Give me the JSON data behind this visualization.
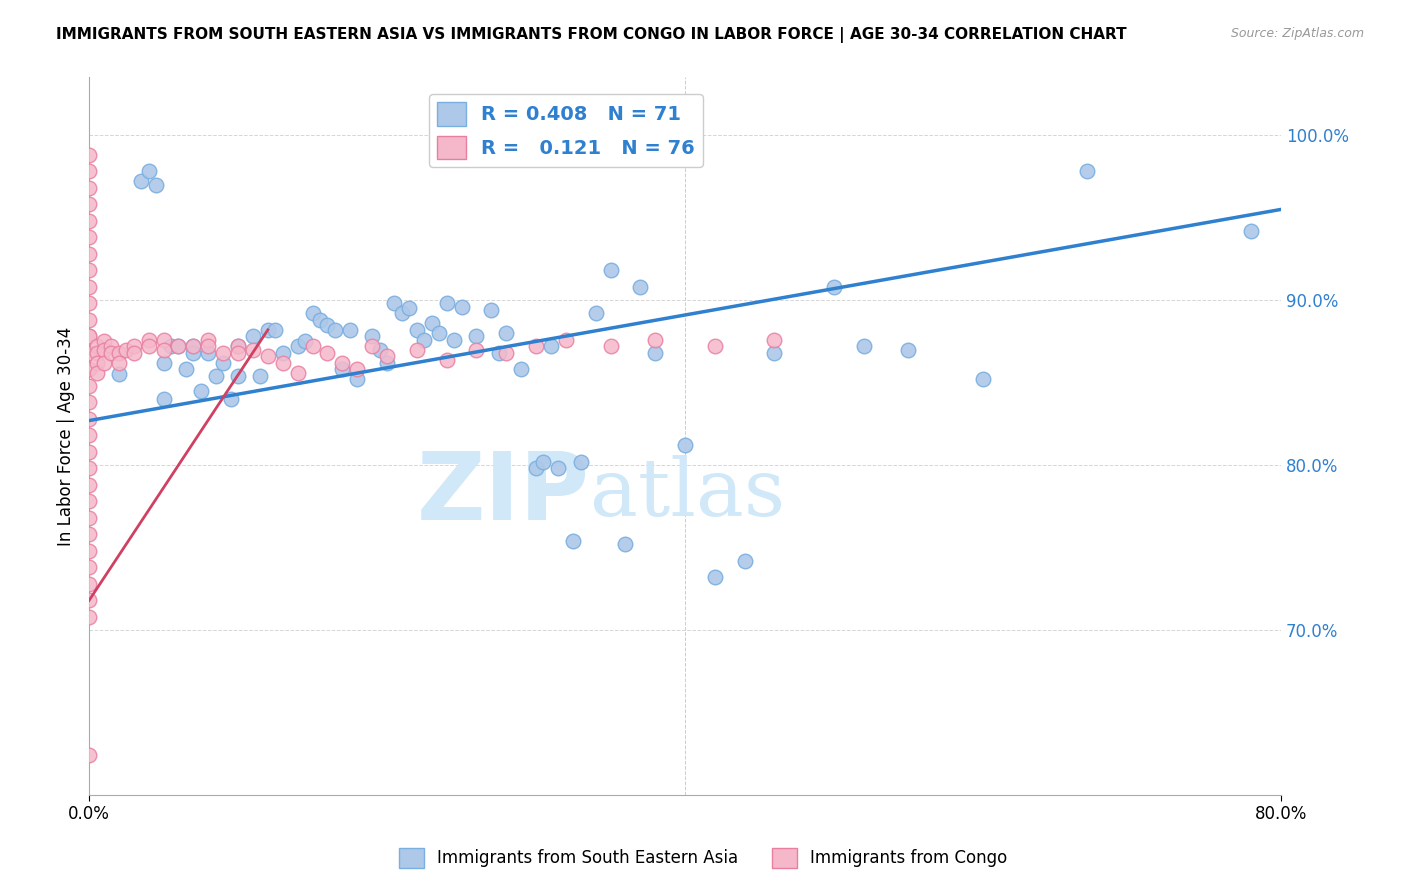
{
  "title": "IMMIGRANTS FROM SOUTH EASTERN ASIA VS IMMIGRANTS FROM CONGO IN LABOR FORCE | AGE 30-34 CORRELATION CHART",
  "source": "Source: ZipAtlas.com",
  "ylabel": "In Labor Force | Age 30-34",
  "xlim": [
    0.0,
    0.8
  ],
  "ylim": [
    0.6,
    1.035
  ],
  "xticks": [
    0.0,
    0.8
  ],
  "yticks": [
    0.7,
    0.8,
    0.9,
    1.0
  ],
  "ytick_labels": [
    "70.0%",
    "80.0%",
    "90.0%",
    "100.0%"
  ],
  "xtick_labels": [
    "0.0%",
    "80.0%"
  ],
  "blue_R": 0.408,
  "blue_N": 71,
  "pink_R": 0.121,
  "pink_N": 76,
  "blue_color": "#adc8e8",
  "blue_edge": "#7aafe0",
  "pink_color": "#f5b8cb",
  "pink_edge": "#e87fa0",
  "blue_line_color": "#3080d0",
  "pink_line_color": "#d04060",
  "watermark_zip": "ZIP",
  "watermark_atlas": "atlas",
  "watermark_color": "#d0e8f8",
  "legend_label_blue": "Immigrants from South Eastern Asia",
  "legend_label_pink": "Immigrants from Congo",
  "blue_x": [
    0.02,
    0.035,
    0.04,
    0.045,
    0.05,
    0.05,
    0.055,
    0.06,
    0.065,
    0.07,
    0.07,
    0.075,
    0.08,
    0.085,
    0.09,
    0.095,
    0.1,
    0.1,
    0.11,
    0.115,
    0.12,
    0.125,
    0.13,
    0.14,
    0.145,
    0.15,
    0.155,
    0.16,
    0.165,
    0.17,
    0.175,
    0.18,
    0.19,
    0.195,
    0.2,
    0.205,
    0.21,
    0.215,
    0.22,
    0.225,
    0.23,
    0.235,
    0.24,
    0.245,
    0.25,
    0.26,
    0.27,
    0.275,
    0.28,
    0.29,
    0.3,
    0.305,
    0.31,
    0.315,
    0.325,
    0.33,
    0.34,
    0.35,
    0.36,
    0.37,
    0.38,
    0.4,
    0.42,
    0.44,
    0.46,
    0.5,
    0.52,
    0.55,
    0.6,
    0.67,
    0.78
  ],
  "blue_y": [
    0.855,
    0.972,
    0.978,
    0.97,
    0.862,
    0.84,
    0.872,
    0.872,
    0.858,
    0.872,
    0.868,
    0.845,
    0.868,
    0.854,
    0.862,
    0.84,
    0.854,
    0.872,
    0.878,
    0.854,
    0.882,
    0.882,
    0.868,
    0.872,
    0.875,
    0.892,
    0.888,
    0.885,
    0.882,
    0.858,
    0.882,
    0.852,
    0.878,
    0.87,
    0.862,
    0.898,
    0.892,
    0.895,
    0.882,
    0.876,
    0.886,
    0.88,
    0.898,
    0.876,
    0.896,
    0.878,
    0.894,
    0.868,
    0.88,
    0.858,
    0.798,
    0.802,
    0.872,
    0.798,
    0.754,
    0.802,
    0.892,
    0.918,
    0.752,
    0.908,
    0.868,
    0.812,
    0.732,
    0.742,
    0.868,
    0.908,
    0.872,
    0.87,
    0.852,
    0.978,
    0.942
  ],
  "pink_x": [
    0.0,
    0.0,
    0.0,
    0.0,
    0.0,
    0.0,
    0.0,
    0.0,
    0.0,
    0.0,
    0.0,
    0.0,
    0.0,
    0.0,
    0.0,
    0.0,
    0.0,
    0.0,
    0.0,
    0.0,
    0.0,
    0.0,
    0.0,
    0.0,
    0.0,
    0.0,
    0.0,
    0.0,
    0.0,
    0.0,
    0.0,
    0.005,
    0.005,
    0.005,
    0.005,
    0.01,
    0.01,
    0.01,
    0.015,
    0.015,
    0.02,
    0.02,
    0.025,
    0.03,
    0.03,
    0.04,
    0.04,
    0.05,
    0.05,
    0.06,
    0.07,
    0.08,
    0.08,
    0.09,
    0.1,
    0.1,
    0.11,
    0.12,
    0.13,
    0.14,
    0.15,
    0.16,
    0.17,
    0.18,
    0.19,
    0.2,
    0.22,
    0.24,
    0.26,
    0.28,
    0.3,
    0.32,
    0.35,
    0.38,
    0.42,
    0.46
  ],
  "pink_y": [
    0.988,
    0.978,
    0.968,
    0.958,
    0.948,
    0.938,
    0.928,
    0.918,
    0.908,
    0.898,
    0.888,
    0.878,
    0.868,
    0.858,
    0.848,
    0.838,
    0.828,
    0.818,
    0.808,
    0.798,
    0.788,
    0.778,
    0.768,
    0.758,
    0.748,
    0.738,
    0.728,
    0.718,
    0.708,
    0.624,
    0.878,
    0.872,
    0.868,
    0.862,
    0.856,
    0.875,
    0.87,
    0.862,
    0.872,
    0.868,
    0.868,
    0.862,
    0.87,
    0.872,
    0.868,
    0.876,
    0.872,
    0.876,
    0.87,
    0.872,
    0.872,
    0.876,
    0.872,
    0.868,
    0.872,
    0.868,
    0.87,
    0.866,
    0.862,
    0.856,
    0.872,
    0.868,
    0.862,
    0.858,
    0.872,
    0.866,
    0.87,
    0.864,
    0.87,
    0.868,
    0.872,
    0.876,
    0.872,
    0.876,
    0.872,
    0.876
  ],
  "blue_trend_x": [
    0.0,
    0.8
  ],
  "blue_trend_y": [
    0.827,
    0.955
  ],
  "pink_trend_x": [
    0.0,
    0.12
  ],
  "pink_trend_y": [
    0.718,
    0.882
  ]
}
